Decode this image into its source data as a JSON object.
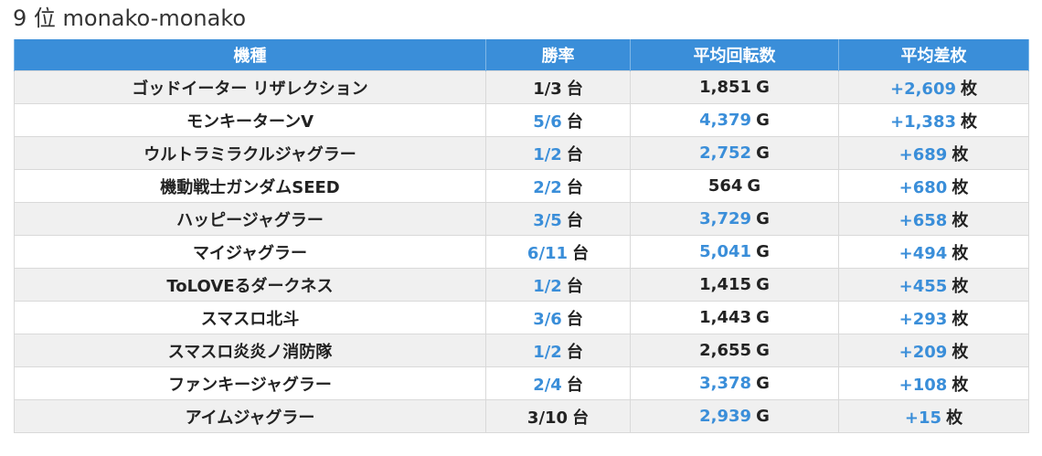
{
  "header": {
    "title": "9 位 monako-monako"
  },
  "table": {
    "columns": [
      "機種",
      "勝率",
      "平均回転数",
      "平均差枚"
    ],
    "rows": [
      {
        "machine": "ゴッドイーター リザレクション",
        "win_rate": "1/3",
        "win_rate_unit": "台",
        "win_rate_highlight": false,
        "avg_spins": "1,851",
        "avg_spins_unit": "G",
        "avg_spins_highlight": false,
        "avg_diff": "+2,609",
        "avg_diff_unit": "枚"
      },
      {
        "machine": "モンキーターンV",
        "win_rate": "5/6",
        "win_rate_unit": "台",
        "win_rate_highlight": true,
        "avg_spins": "4,379",
        "avg_spins_unit": "G",
        "avg_spins_highlight": true,
        "avg_diff": "+1,383",
        "avg_diff_unit": "枚"
      },
      {
        "machine": "ウルトラミラクルジャグラー",
        "win_rate": "1/2",
        "win_rate_unit": "台",
        "win_rate_highlight": true,
        "avg_spins": "2,752",
        "avg_spins_unit": "G",
        "avg_spins_highlight": true,
        "avg_diff": "+689",
        "avg_diff_unit": "枚"
      },
      {
        "machine": "機動戦士ガンダムSEED",
        "win_rate": "2/2",
        "win_rate_unit": "台",
        "win_rate_highlight": true,
        "avg_spins": "564",
        "avg_spins_unit": "G",
        "avg_spins_highlight": false,
        "avg_diff": "+680",
        "avg_diff_unit": "枚"
      },
      {
        "machine": "ハッピージャグラー",
        "win_rate": "3/5",
        "win_rate_unit": "台",
        "win_rate_highlight": true,
        "avg_spins": "3,729",
        "avg_spins_unit": "G",
        "avg_spins_highlight": true,
        "avg_diff": "+658",
        "avg_diff_unit": "枚"
      },
      {
        "machine": "マイジャグラー",
        "win_rate": "6/11",
        "win_rate_unit": "台",
        "win_rate_highlight": true,
        "avg_spins": "5,041",
        "avg_spins_unit": "G",
        "avg_spins_highlight": true,
        "avg_diff": "+494",
        "avg_diff_unit": "枚"
      },
      {
        "machine": "ToLOVEるダークネス",
        "win_rate": "1/2",
        "win_rate_unit": "台",
        "win_rate_highlight": true,
        "avg_spins": "1,415",
        "avg_spins_unit": "G",
        "avg_spins_highlight": false,
        "avg_diff": "+455",
        "avg_diff_unit": "枚"
      },
      {
        "machine": "スマスロ北斗",
        "win_rate": "3/6",
        "win_rate_unit": "台",
        "win_rate_highlight": true,
        "avg_spins": "1,443",
        "avg_spins_unit": "G",
        "avg_spins_highlight": false,
        "avg_diff": "+293",
        "avg_diff_unit": "枚"
      },
      {
        "machine": "スマスロ炎炎ノ消防隊",
        "win_rate": "1/2",
        "win_rate_unit": "台",
        "win_rate_highlight": true,
        "avg_spins": "2,655",
        "avg_spins_unit": "G",
        "avg_spins_highlight": false,
        "avg_diff": "+209",
        "avg_diff_unit": "枚"
      },
      {
        "machine": "ファンキージャグラー",
        "win_rate": "2/4",
        "win_rate_unit": "台",
        "win_rate_highlight": true,
        "avg_spins": "3,378",
        "avg_spins_unit": "G",
        "avg_spins_highlight": true,
        "avg_diff": "+108",
        "avg_diff_unit": "枚"
      },
      {
        "machine": "アイムジャグラー",
        "win_rate": "3/10",
        "win_rate_unit": "台",
        "win_rate_highlight": false,
        "avg_spins": "2,939",
        "avg_spins_unit": "G",
        "avg_spins_highlight": true,
        "avg_diff": "+15",
        "avg_diff_unit": "枚"
      }
    ]
  },
  "colors": {
    "header_bg": "#3a8ed9",
    "highlight_text": "#3a8ed9",
    "row_stripe": "#f0f0f0"
  }
}
